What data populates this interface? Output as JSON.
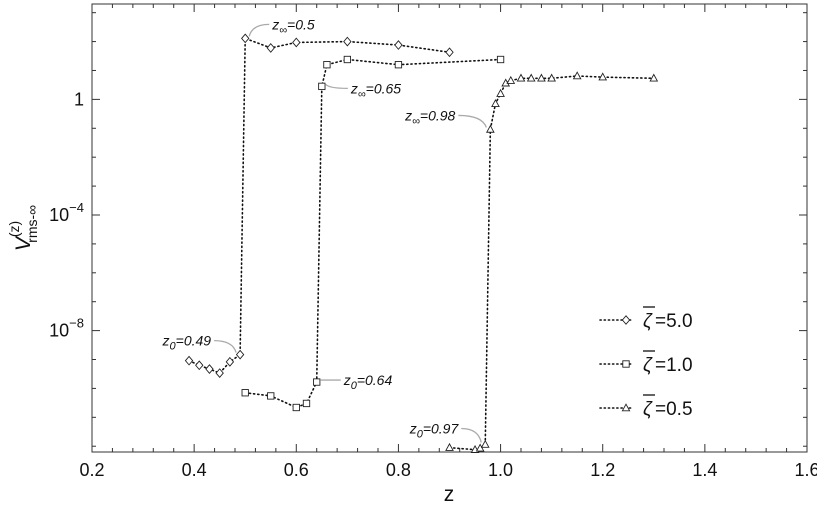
{
  "chart_data": {
    "type": "line",
    "title": "",
    "xlabel": "z",
    "ylabel_main": "V",
    "ylabel_sup": "(z)",
    "ylabel_sub": "rms-∞",
    "xlim": [
      0.2,
      1.6
    ],
    "ylim_log10": [
      -12.2,
      3.3
    ],
    "y_scale": "log",
    "x_ticks": [
      {
        "value": 0.2,
        "label": "0.2"
      },
      {
        "value": 0.4,
        "label": "0.4"
      },
      {
        "value": 0.6,
        "label": "0.6"
      },
      {
        "value": 0.8,
        "label": "0.8"
      },
      {
        "value": 1.0,
        "label": "1.0"
      },
      {
        "value": 1.2,
        "label": "1.2"
      },
      {
        "value": 1.4,
        "label": "1.4"
      },
      {
        "value": 1.6,
        "label": "1.6"
      }
    ],
    "y_ticks": [
      {
        "log10": 0,
        "base": "1",
        "exp": ""
      },
      {
        "log10": -4,
        "base": "10",
        "exp": "−4"
      },
      {
        "log10": -8,
        "base": "10",
        "exp": "−8"
      }
    ],
    "legend": {
      "position": "bottom-right",
      "entries": [
        {
          "symbol": "ζ",
          "text": "=5.0",
          "marker": "diamond"
        },
        {
          "symbol": "ζ",
          "text": "=1.0",
          "marker": "square"
        },
        {
          "symbol": "ζ",
          "text": "=0.5",
          "marker": "triangle"
        }
      ]
    },
    "series": [
      {
        "marker": "diamond",
        "points": [
          [
            0.39,
            -9.04
          ],
          [
            0.41,
            -9.2
          ],
          [
            0.43,
            -9.33
          ],
          [
            0.45,
            -9.47
          ],
          [
            0.47,
            -9.08
          ],
          [
            0.49,
            -8.83
          ],
          [
            0.5,
            2.11
          ],
          [
            0.55,
            1.78
          ],
          [
            0.6,
            1.97
          ],
          [
            0.7,
            2.0
          ],
          [
            0.8,
            1.88
          ],
          [
            0.9,
            1.63
          ]
        ]
      },
      {
        "marker": "square",
        "points": [
          [
            0.5,
            -10.15
          ],
          [
            0.55,
            -10.26
          ],
          [
            0.6,
            -10.66
          ],
          [
            0.62,
            -10.52
          ],
          [
            0.64,
            -9.78
          ],
          [
            0.65,
            0.45
          ],
          [
            0.66,
            1.2
          ],
          [
            0.7,
            1.38
          ],
          [
            0.8,
            1.2
          ],
          [
            1.0,
            1.38
          ]
        ]
      },
      {
        "marker": "triangle",
        "points": [
          [
            0.9,
            -12.05
          ],
          [
            0.95,
            -12.12
          ],
          [
            0.96,
            -12.07
          ],
          [
            0.97,
            -11.94
          ],
          [
            0.98,
            -1.04
          ],
          [
            0.99,
            -0.15
          ],
          [
            1.0,
            0.2
          ],
          [
            1.01,
            0.56
          ],
          [
            1.02,
            0.65
          ],
          [
            1.04,
            0.73
          ],
          [
            1.06,
            0.73
          ],
          [
            1.08,
            0.73
          ],
          [
            1.1,
            0.73
          ],
          [
            1.15,
            0.81
          ],
          [
            1.2,
            0.77
          ],
          [
            1.3,
            0.73
          ]
        ]
      }
    ],
    "annotations": [
      {
        "pre": "z",
        "sub": "∞",
        "post": "=0.5",
        "x": 0.5,
        "y": 2.11,
        "side": "right",
        "dx": 24,
        "dy": -14
      },
      {
        "pre": "z",
        "sub": "∞",
        "post": "=0.65",
        "x": 0.65,
        "y": 0.45,
        "side": "right",
        "dx": 26,
        "dy": 2
      },
      {
        "pre": "z",
        "sub": "∞",
        "post": "=0.98",
        "x": 0.98,
        "y": -1.04,
        "side": "left",
        "dx": -32,
        "dy": -14
      },
      {
        "pre": "z",
        "sub": "0",
        "post": "=0.49",
        "x": 0.49,
        "y": -8.83,
        "side": "left",
        "dx": -26,
        "dy": -14
      },
      {
        "pre": "z",
        "sub": "0",
        "post": "=0.64",
        "x": 0.64,
        "y": -9.78,
        "side": "right",
        "dx": 24,
        "dy": -2
      },
      {
        "pre": "z",
        "sub": "0",
        "post": "=0.97",
        "x": 0.97,
        "y": -11.94,
        "side": "left",
        "dx": -24,
        "dy": -16
      }
    ]
  }
}
